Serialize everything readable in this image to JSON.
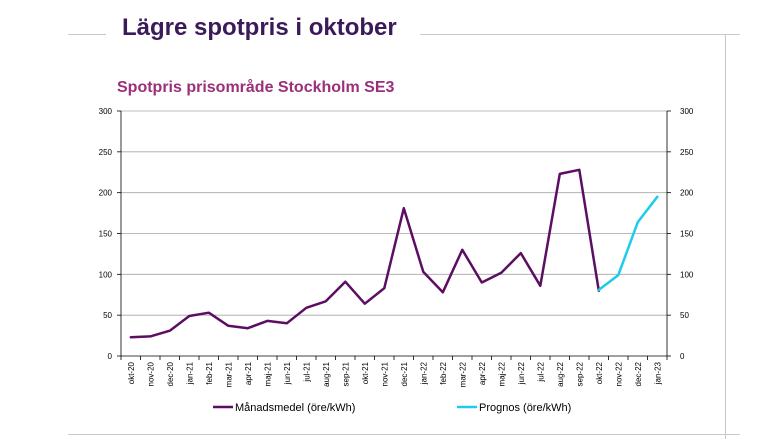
{
  "slide": {
    "title": "Lägre spotpris i oktober"
  },
  "colors": {
    "title": "#3b1a5a",
    "subtitle": "#9b2f7a",
    "series_main": "#5c0e63",
    "series_forecast": "#1ecbeb",
    "grid": "#a6a6a6"
  },
  "chart_data": {
    "type": "line",
    "title": "Spotpris prisområde Stockholm SE3",
    "xlabel": "",
    "ylabel": "",
    "ylim": [
      0,
      300
    ],
    "y_ticks": [
      0,
      50,
      100,
      150,
      200,
      250,
      300
    ],
    "grid": true,
    "legend_position": "bottom",
    "categories": [
      "okt-20",
      "nov-20",
      "dec-20",
      "jan-21",
      "feb-21",
      "mar-21",
      "apr-21",
      "maj-21",
      "jun-21",
      "jul-21",
      "aug-21",
      "sep-21",
      "okt-21",
      "nov-21",
      "dec-21",
      "jan-22",
      "feb-22",
      "mar-22",
      "apr-22",
      "maj-22",
      "jun-22",
      "jul-22",
      "aug-22",
      "sep-22",
      "okt-22",
      "nov-22",
      "dec-22",
      "jan-23"
    ],
    "series": [
      {
        "name": "Månadsmedel (öre/kWh)",
        "color": "#5c0e63",
        "values": [
          23,
          24,
          31,
          49,
          53,
          37,
          34,
          43,
          40,
          59,
          67,
          91,
          64,
          83,
          181,
          103,
          78,
          130,
          90,
          102,
          126,
          86,
          223,
          228,
          80,
          null,
          null,
          null
        ]
      },
      {
        "name": "Prognos (öre/kWh)",
        "color": "#1ecbeb",
        "values": [
          null,
          null,
          null,
          null,
          null,
          null,
          null,
          null,
          null,
          null,
          null,
          null,
          null,
          null,
          null,
          null,
          null,
          null,
          null,
          null,
          null,
          null,
          null,
          null,
          81,
          99,
          164,
          195
        ]
      }
    ]
  }
}
